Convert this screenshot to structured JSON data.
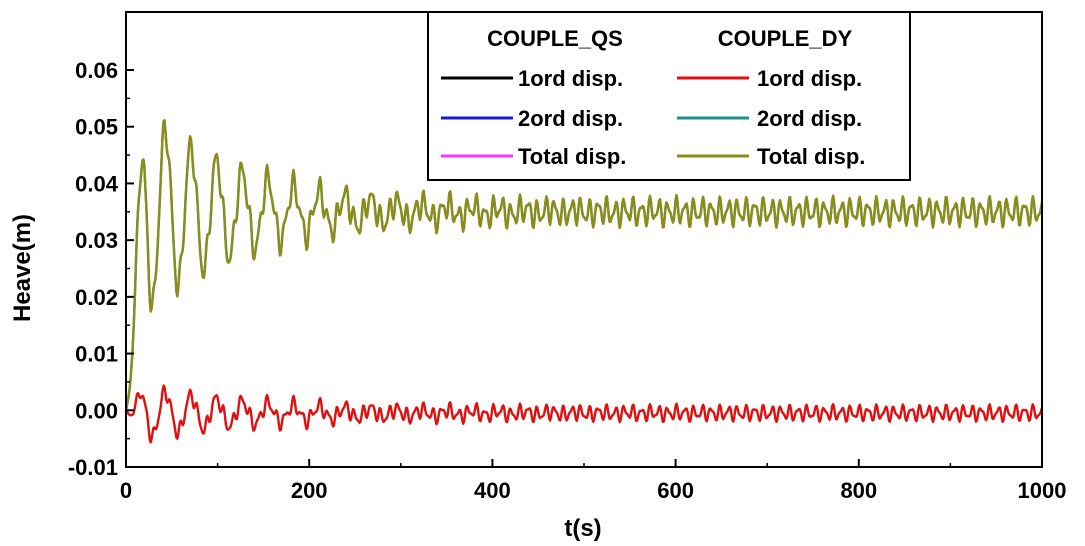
{
  "chart_data": {
    "type": "line",
    "xlabel": "t(s)",
    "ylabel": "Heave(m)",
    "xlim": [
      0,
      1000
    ],
    "ylim": [
      -0.01,
      0.06
    ],
    "x_ticks": [
      "0",
      "200",
      "400",
      "600",
      "800",
      "1000"
    ],
    "y_ticks": [
      "-0.01",
      "0.00",
      "0.01",
      "0.02",
      "0.03",
      "0.04",
      "0.05",
      "0.06"
    ],
    "grid": false,
    "legend_placement": "top-right",
    "legend_headers": [
      "COUPLE_QS",
      "COUPLE_DY"
    ],
    "series": [
      {
        "name": "1ord disp.",
        "group": "COUPLE_QS",
        "color": "#000000",
        "legend_only": true,
        "model": {
          "mean": 0.035,
          "decay_amp": 0.021,
          "tau": 120,
          "period": 28,
          "residual": 0.0025,
          "noise_period": 9.5
        }
      },
      {
        "name": "2ord disp.",
        "group": "COUPLE_QS",
        "color": "#1a1acc",
        "legend_only": true,
        "model": {
          "mean": 0.035,
          "decay_amp": 0.021,
          "tau": 120,
          "period": 28,
          "residual": 0.0025,
          "noise_period": 9.5
        }
      },
      {
        "name": "Total disp.",
        "group": "COUPLE_QS",
        "color": "#ff33ff",
        "legend_only": true,
        "model": {
          "mean": 0.035,
          "decay_amp": 0.021,
          "tau": 120,
          "period": 28,
          "residual": 0.0025,
          "noise_period": 9.5
        }
      },
      {
        "name": "1ord disp.",
        "group": "COUPLE_DY",
        "color": "#e01010",
        "model": {
          "mean": -0.0005,
          "decay_amp": 0.005,
          "tau": 150,
          "period": 28,
          "residual": 0.0015,
          "noise_period": 9.5
        }
      },
      {
        "name": "2ord disp.",
        "group": "COUPLE_DY",
        "color": "#1f8f8f",
        "model": {
          "mean": 0.035,
          "decay_amp": 0.021,
          "tau": 120,
          "period": 28,
          "residual": 0.0025,
          "noise_period": 9.5
        }
      },
      {
        "name": "Total disp.",
        "group": "COUPLE_DY",
        "color": "#8c8c18",
        "model": {
          "mean": 0.035,
          "decay_amp": 0.021,
          "tau": 120,
          "period": 28,
          "residual": 0.0027,
          "noise_period": 9.5
        }
      }
    ],
    "key_points": {
      "first_peak": {
        "x": 22,
        "y": 0.056
      },
      "first_trough_after_peak": {
        "x": 38,
        "y": 0.016
      },
      "red_max": {
        "x": 55,
        "y": 0.006
      },
      "red_min": {
        "x": 75,
        "y": -0.0075
      },
      "steady_mean_upper": 0.035,
      "steady_mean_red": -0.0005
    }
  }
}
